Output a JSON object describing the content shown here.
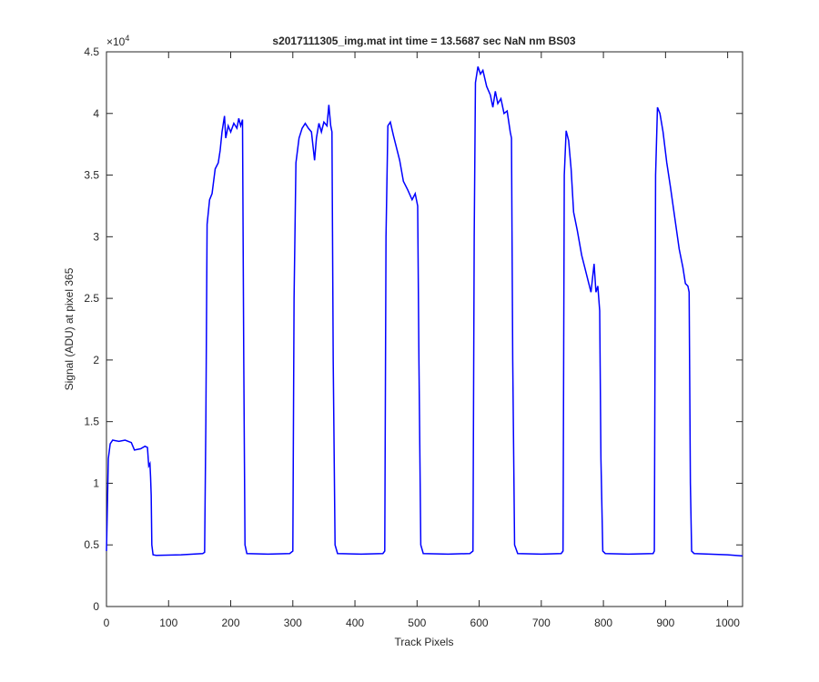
{
  "chart_data": {
    "type": "line",
    "title": "s2017111305_img.mat int time = 13.5687 sec  NaN nm BS03",
    "x_label": "Track Pixels",
    "y_label": "Signal (ADU) at pixel 365",
    "y_exponent": {
      "base": "×10",
      "power": "4"
    },
    "xlim": [
      0,
      1024
    ],
    "ylim": [
      0,
      4.5
    ],
    "xticks": [
      0,
      100,
      200,
      300,
      400,
      500,
      600,
      700,
      800,
      900,
      1000
    ],
    "yticks": [
      0,
      0.5,
      1,
      1.5,
      2,
      2.5,
      3,
      3.5,
      4,
      4.5
    ],
    "grid": false,
    "series": [
      {
        "color": "#0000ff",
        "x": [
          0,
          3,
          6,
          10,
          20,
          30,
          40,
          45,
          55,
          62,
          66,
          68,
          70,
          71,
          72,
          73,
          75,
          80,
          120,
          155,
          158,
          160,
          162,
          166,
          170,
          175,
          180,
          183,
          186,
          190,
          192,
          196,
          200,
          205,
          210,
          213,
          216,
          219,
          221,
          223,
          226,
          260,
          295,
          300,
          302,
          305,
          310,
          315,
          320,
          325,
          330,
          335,
          338,
          342,
          346,
          350,
          355,
          358,
          361,
          363,
          365,
          368,
          372,
          410,
          445,
          448,
          450,
          453,
          457,
          462,
          468,
          472,
          478,
          485,
          492,
          497,
          501,
          503,
          506,
          510,
          550,
          585,
          590,
          592,
          594,
          598,
          602,
          606,
          612,
          618,
          622,
          626,
          630,
          635,
          640,
          645,
          650,
          652,
          654,
          657,
          662,
          700,
          732,
          735,
          737,
          740,
          744,
          748,
          752,
          758,
          765,
          770,
          775,
          780,
          785,
          788,
          791,
          794,
          796,
          799,
          803,
          840,
          880,
          882,
          884,
          887,
          891,
          896,
          902,
          908,
          915,
          922,
          928,
          932,
          936,
          938,
          940,
          942,
          946,
          1000,
          1024
        ],
        "values": [
          0.45,
          1.2,
          1.32,
          1.35,
          1.34,
          1.35,
          1.33,
          1.27,
          1.28,
          1.3,
          1.29,
          1.14,
          1.16,
          1.05,
          0.9,
          0.5,
          0.42,
          0.415,
          0.42,
          0.43,
          0.44,
          1.5,
          3.1,
          3.3,
          3.35,
          3.55,
          3.6,
          3.7,
          3.85,
          3.98,
          3.8,
          3.9,
          3.85,
          3.92,
          3.88,
          3.96,
          3.9,
          3.95,
          2,
          0.5,
          0.43,
          0.425,
          0.43,
          0.45,
          2.5,
          3.6,
          3.8,
          3.88,
          3.92,
          3.88,
          3.85,
          3.62,
          3.8,
          3.92,
          3.85,
          3.93,
          3.9,
          4.07,
          3.9,
          3.85,
          2,
          0.5,
          0.43,
          0.425,
          0.43,
          0.45,
          3,
          3.9,
          3.93,
          3.82,
          3.7,
          3.62,
          3.45,
          3.38,
          3.3,
          3.35,
          3.25,
          2,
          0.5,
          0.43,
          0.425,
          0.43,
          0.45,
          3,
          4.25,
          4.38,
          4.32,
          4.35,
          4.22,
          4.15,
          4.05,
          4.18,
          4.08,
          4.12,
          4,
          4.02,
          3.85,
          3.8,
          2,
          0.5,
          0.43,
          0.425,
          0.43,
          0.45,
          3.5,
          3.86,
          3.78,
          3.55,
          3.2,
          3.05,
          2.85,
          2.75,
          2.65,
          2.55,
          2.78,
          2.55,
          2.6,
          2.4,
          1.2,
          0.45,
          0.43,
          0.425,
          0.43,
          0.45,
          3.5,
          4.05,
          4,
          3.85,
          3.6,
          3.4,
          3.15,
          2.9,
          2.75,
          2.62,
          2.6,
          2.55,
          1,
          0.45,
          0.43,
          0.42,
          0.41
        ]
      }
    ]
  }
}
